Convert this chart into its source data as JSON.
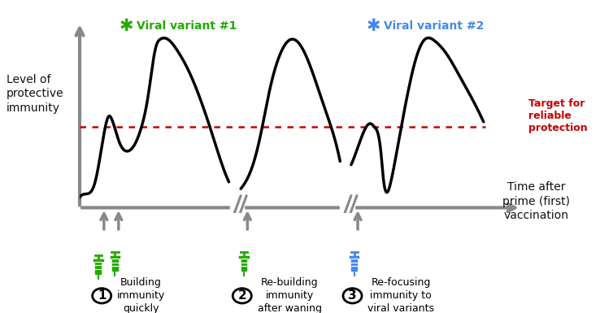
{
  "ylabel": "Level of\nprotective\nimmunity",
  "xlabel": "Time after\nprime (first)\nvaccination",
  "target_line_y": 0.42,
  "target_label": "Target for\nreliable\nprotection",
  "target_label_color": "#cc0000",
  "curve_color": "#000000",
  "curve_lw": 2.5,
  "axis_color": "#888888",
  "bg_color": "#ffffff",
  "variant1_label": "Viral variant #1",
  "variant1_color": "#22aa00",
  "variant2_label": "Viral variant #2",
  "variant2_color": "#4488ee",
  "label1": "Building\nimmunity\nquickly",
  "label2": "Re-building\nimmunity\nafter waning",
  "label3": "Re-focusing\nimmunity to\nviral variants",
  "syringe_green": "#22aa00",
  "syringe_blue": "#4488ee",
  "arrow_gray": "#888888"
}
